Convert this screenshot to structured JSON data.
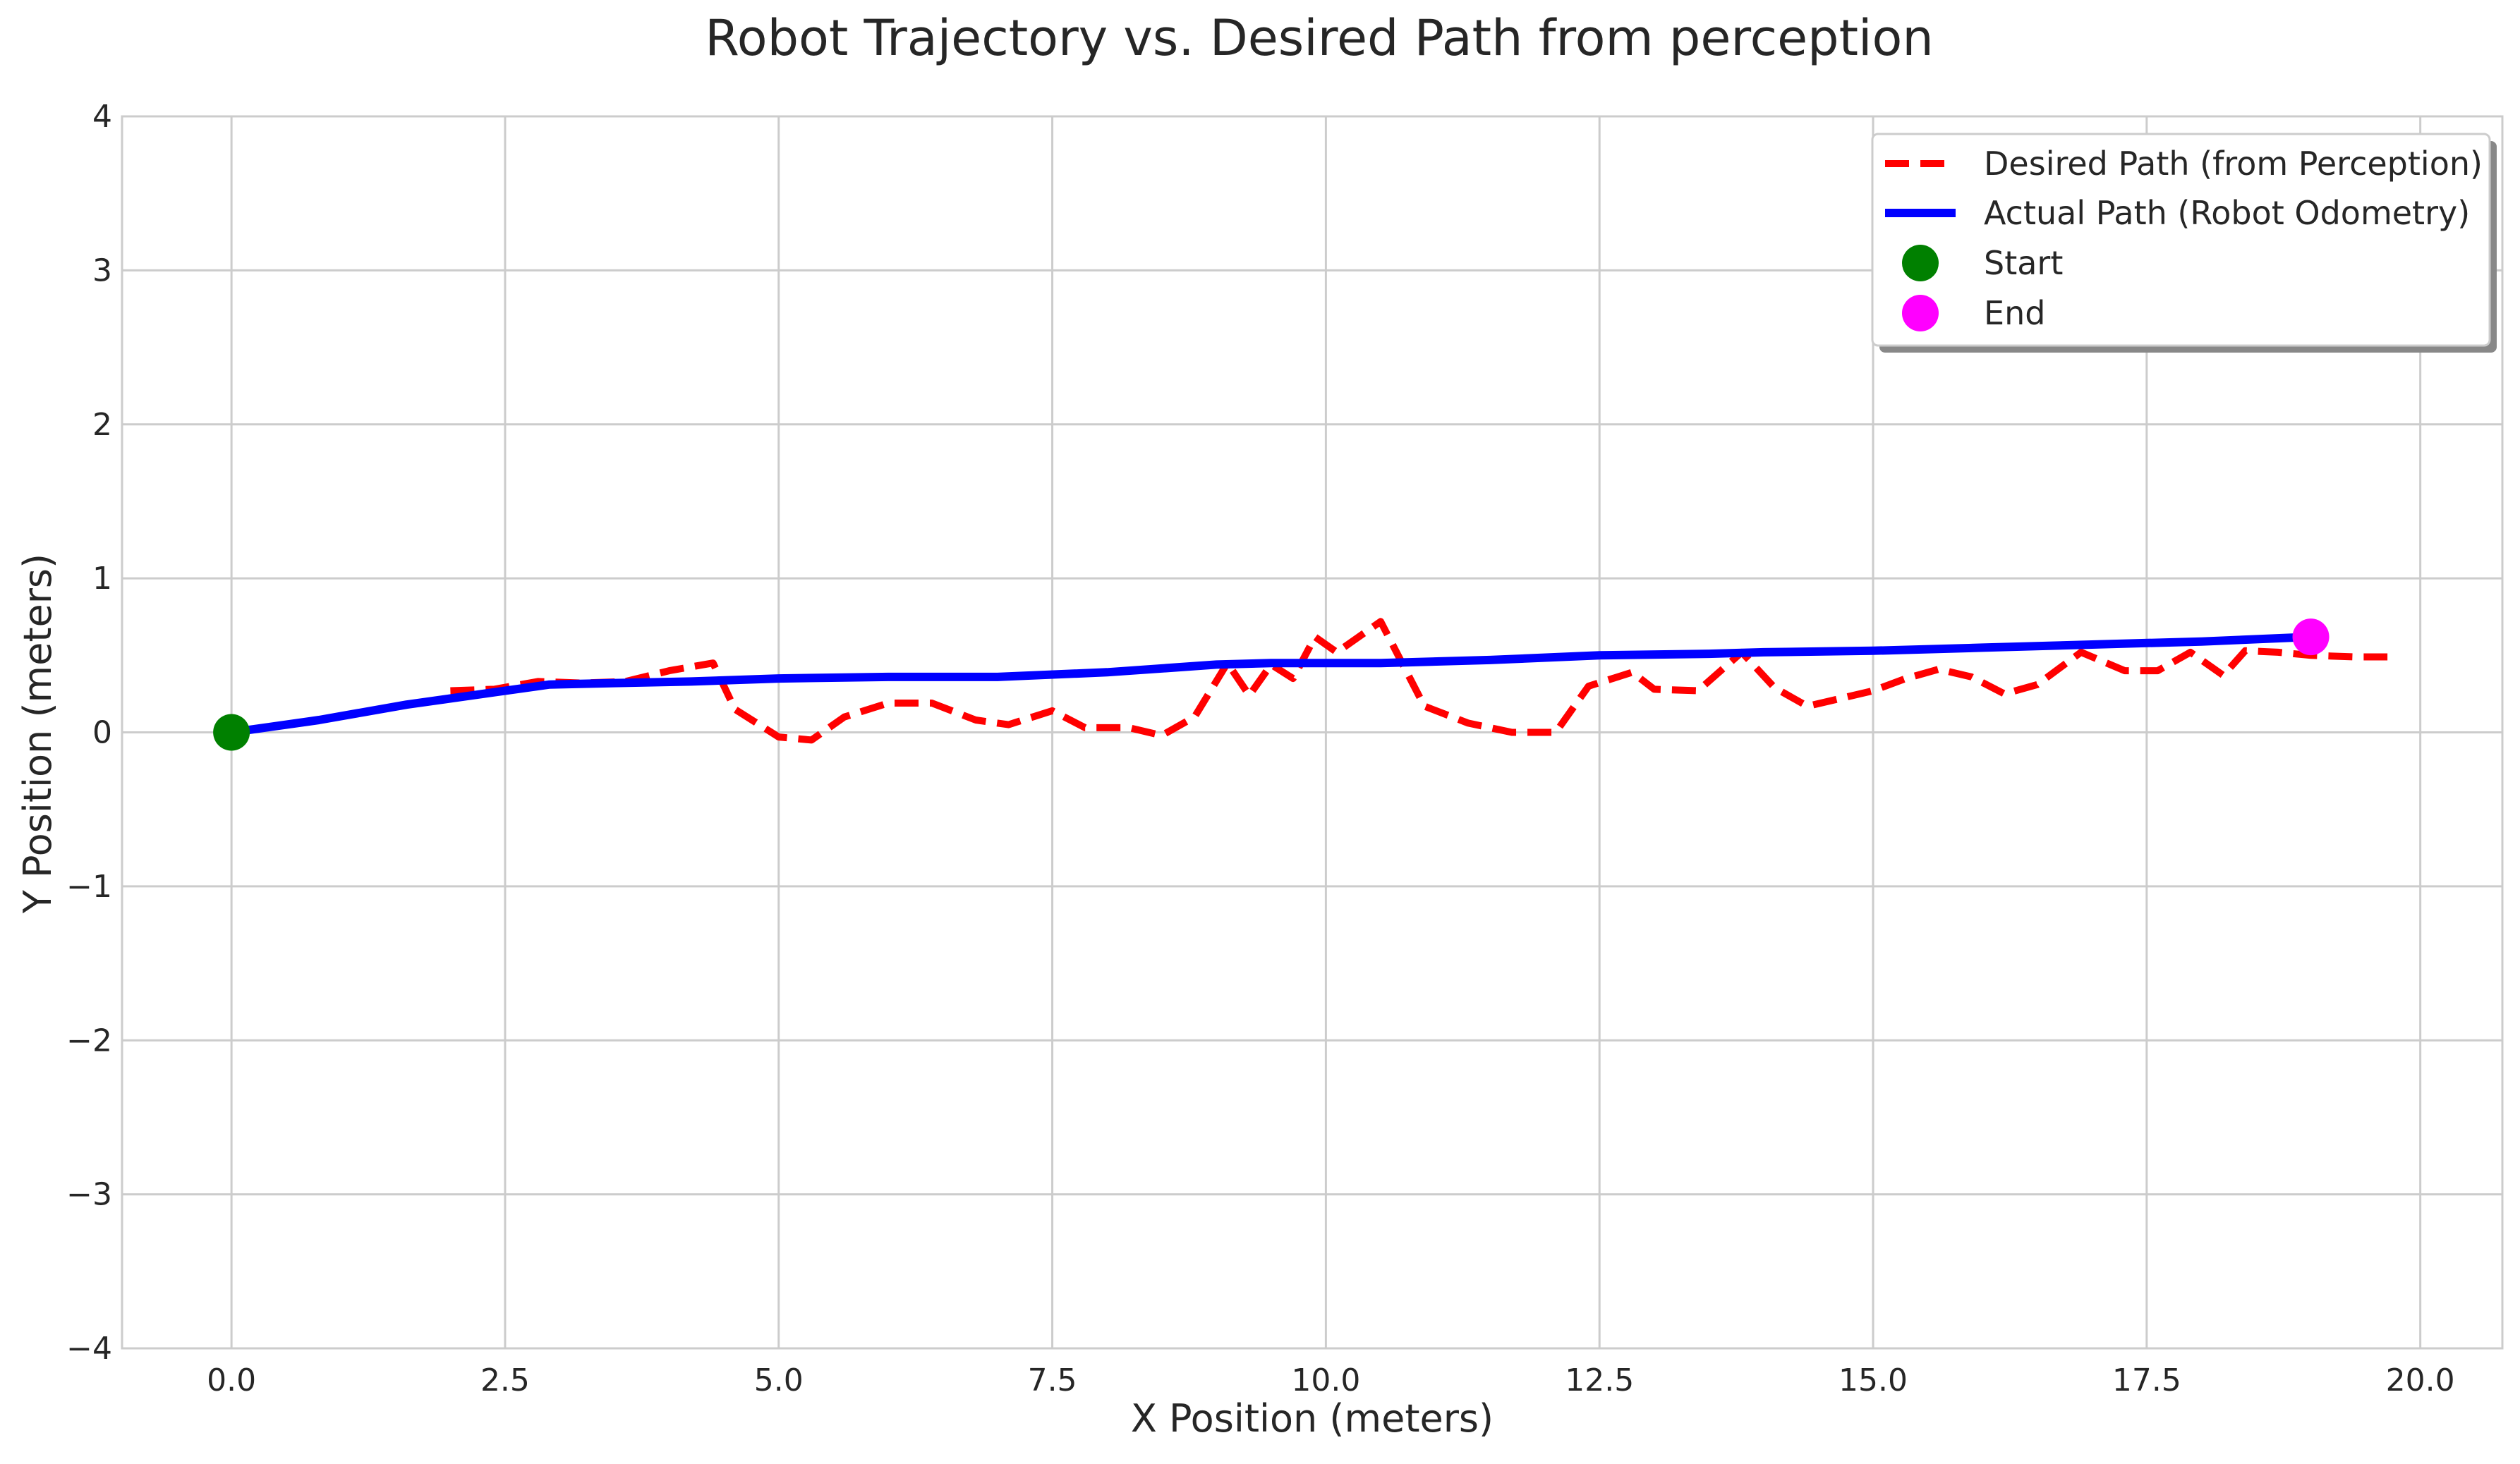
{
  "chart_data": {
    "type": "line",
    "title": "Robot Trajectory vs. Desired Path from perception",
    "xlabel": "X Position (meters)",
    "ylabel": "Y Position (meters)",
    "xlim": [
      -1.0,
      20.75
    ],
    "ylim": [
      -4,
      4
    ],
    "grid": true,
    "legend_position": "upper right",
    "xticks": [
      0.0,
      2.5,
      5.0,
      7.5,
      10.0,
      12.5,
      15.0,
      17.5,
      20.0
    ],
    "xtick_labels": [
      "0.0",
      "2.5",
      "5.0",
      "7.5",
      "10.0",
      "12.5",
      "15.0",
      "17.5",
      "20.0"
    ],
    "yticks": [
      4,
      3,
      2,
      1,
      0,
      -1,
      -2,
      -3,
      -4
    ],
    "ytick_labels": [
      "4",
      "3",
      "2",
      "1",
      "0",
      "−1",
      "−2",
      "−3",
      "−4"
    ],
    "series": [
      {
        "name": "Desired Path (from Perception)",
        "style": "dashed",
        "color": "#ff0000",
        "x": [
          2.0,
          2.4,
          2.8,
          3.2,
          3.6,
          4.0,
          4.4,
          4.6,
          5.0,
          5.3,
          5.6,
          6.0,
          6.4,
          6.8,
          7.1,
          7.5,
          7.8,
          8.2,
          8.5,
          8.8,
          9.1,
          9.3,
          9.5,
          9.7,
          9.9,
          10.1,
          10.5,
          10.9,
          11.3,
          11.7,
          12.1,
          12.4,
          12.8,
          13.0,
          13.4,
          13.8,
          14.1,
          14.4,
          14.7,
          15.0,
          15.3,
          15.6,
          15.9,
          16.2,
          16.5,
          16.9,
          17.3,
          17.6,
          17.9,
          18.2,
          18.4,
          18.7,
          19.0,
          19.4,
          19.7
        ],
        "y": [
          0.27,
          0.28,
          0.33,
          0.32,
          0.33,
          0.4,
          0.45,
          0.15,
          -0.03,
          -0.05,
          0.1,
          0.19,
          0.19,
          0.08,
          0.05,
          0.14,
          0.03,
          0.03,
          -0.02,
          0.1,
          0.45,
          0.24,
          0.44,
          0.35,
          0.62,
          0.52,
          0.72,
          0.17,
          0.06,
          0.0,
          0.0,
          0.3,
          0.39,
          0.28,
          0.27,
          0.52,
          0.29,
          0.17,
          0.22,
          0.27,
          0.35,
          0.41,
          0.36,
          0.25,
          0.31,
          0.52,
          0.4,
          0.4,
          0.52,
          0.37,
          0.53,
          0.52,
          0.5,
          0.49,
          0.49
        ]
      },
      {
        "name": "Actual Path (Robot Odometry)",
        "style": "solid",
        "color": "#0000ff",
        "x": [
          0.0,
          0.8,
          1.6,
          2.4,
          2.9,
          3.5,
          4.2,
          5.0,
          6.0,
          7.0,
          8.0,
          9.0,
          9.5,
          10.5,
          11.5,
          12.5,
          13.5,
          14.0,
          15.0,
          16.0,
          17.0,
          18.0,
          19.0
        ],
        "y": [
          0.0,
          0.08,
          0.18,
          0.26,
          0.31,
          0.32,
          0.33,
          0.35,
          0.36,
          0.36,
          0.39,
          0.44,
          0.45,
          0.45,
          0.47,
          0.5,
          0.51,
          0.52,
          0.53,
          0.55,
          0.57,
          0.59,
          0.62
        ]
      }
    ],
    "markers": [
      {
        "name": "Start",
        "x": 0.0,
        "y": 0.0,
        "color": "#008000"
      },
      {
        "name": "End",
        "x": 19.0,
        "y": 0.62,
        "color": "#ff00ff"
      }
    ]
  }
}
